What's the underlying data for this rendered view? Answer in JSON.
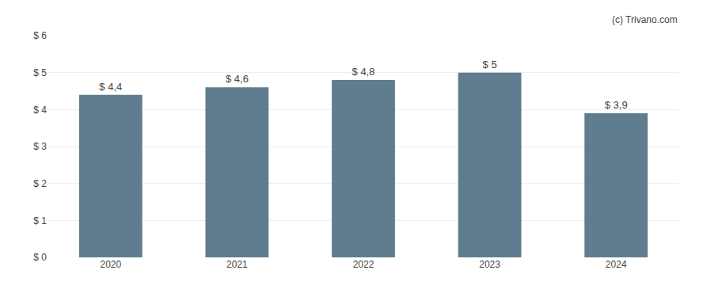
{
  "chart_data": {
    "type": "bar",
    "categories": [
      "2020",
      "2021",
      "2022",
      "2023",
      "2024"
    ],
    "values": [
      4.4,
      4.6,
      4.8,
      5.0,
      3.9
    ],
    "value_labels": [
      "$ 4,4",
      "$ 4,6",
      "$ 4,8",
      "$ 5",
      "$ 3,9"
    ],
    "data_labels": true,
    "color": "#5f7d8e",
    "ylim": [
      0,
      6
    ],
    "yticks": [
      {
        "value": 0,
        "label": "$ 0"
      },
      {
        "value": 1,
        "label": "$ 1"
      },
      {
        "value": 2,
        "label": "$ 2"
      },
      {
        "value": 3,
        "label": "$ 3"
      },
      {
        "value": 4,
        "label": "$ 4"
      },
      {
        "value": 5,
        "label": "$ 5"
      },
      {
        "value": 6,
        "label": "$ 6"
      }
    ],
    "grid": true,
    "annotations": [
      "(c) Trivano.com"
    ]
  }
}
